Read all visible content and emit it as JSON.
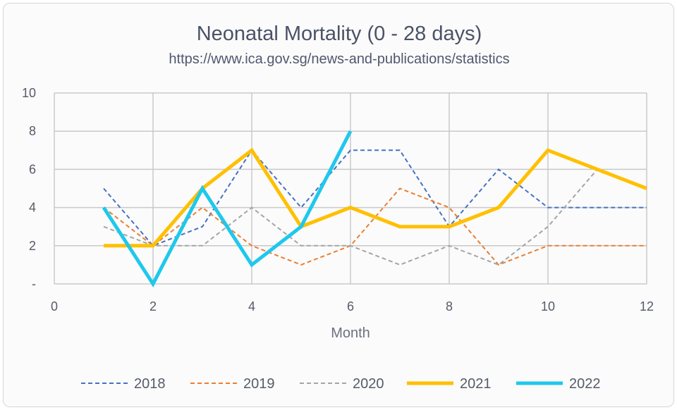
{
  "chart_data": {
    "type": "line",
    "title": "Neonatal Mortality (0 - 28 days)",
    "subtitle": "https://www.ica.gov.sg/news-and-publications/statistics",
    "xlabel": "Month",
    "ylabel": "",
    "xlim": [
      0,
      12
    ],
    "ylim": [
      0,
      10
    ],
    "x_ticks": [
      0,
      2,
      4,
      6,
      8,
      10,
      12
    ],
    "x_tick_labels": [
      "0",
      "2",
      "4",
      "6",
      "8",
      "10",
      "12"
    ],
    "y_ticks": [
      0,
      2,
      4,
      6,
      8,
      10
    ],
    "y_tick_labels": [
      "-",
      "2",
      "4",
      "6",
      "8",
      "10"
    ],
    "grid": true,
    "legend_position": "bottom",
    "series": [
      {
        "name": "2018",
        "color": "#4472c4",
        "style": "dashed",
        "weight": "thin",
        "x": [
          1,
          2,
          3,
          4,
          5,
          6,
          7,
          8,
          9,
          10,
          11,
          12
        ],
        "y": [
          5,
          2,
          3,
          7,
          4,
          7,
          7,
          3,
          6,
          4,
          4,
          4
        ]
      },
      {
        "name": "2019",
        "color": "#ed7d31",
        "style": "dashed",
        "weight": "thin",
        "x": [
          1,
          2,
          3,
          4,
          5,
          6,
          7,
          8,
          9,
          10,
          11,
          12
        ],
        "y": [
          4,
          2,
          4,
          2,
          1,
          2,
          5,
          4,
          1,
          2,
          2,
          2
        ]
      },
      {
        "name": "2020",
        "color": "#a5a5a5",
        "style": "dashed",
        "weight": "thin",
        "x": [
          1,
          2,
          3,
          4,
          5,
          6,
          7,
          8,
          9,
          10,
          11,
          12
        ],
        "y": [
          3,
          2,
          2,
          4,
          2,
          2,
          1,
          2,
          1,
          3,
          6,
          5
        ]
      },
      {
        "name": "2021",
        "color": "#ffc000",
        "style": "solid",
        "weight": "thick",
        "x": [
          1,
          2,
          3,
          4,
          5,
          6,
          7,
          8,
          9,
          10,
          11,
          12
        ],
        "y": [
          2,
          2,
          5,
          7,
          3,
          4,
          3,
          3,
          4,
          7,
          6,
          5
        ]
      },
      {
        "name": "2022",
        "color": "#1fc8ec",
        "style": "solid",
        "weight": "thick",
        "x": [
          1,
          2,
          3,
          4,
          5,
          6
        ],
        "y": [
          4,
          0,
          5,
          1,
          3,
          8
        ]
      }
    ]
  }
}
